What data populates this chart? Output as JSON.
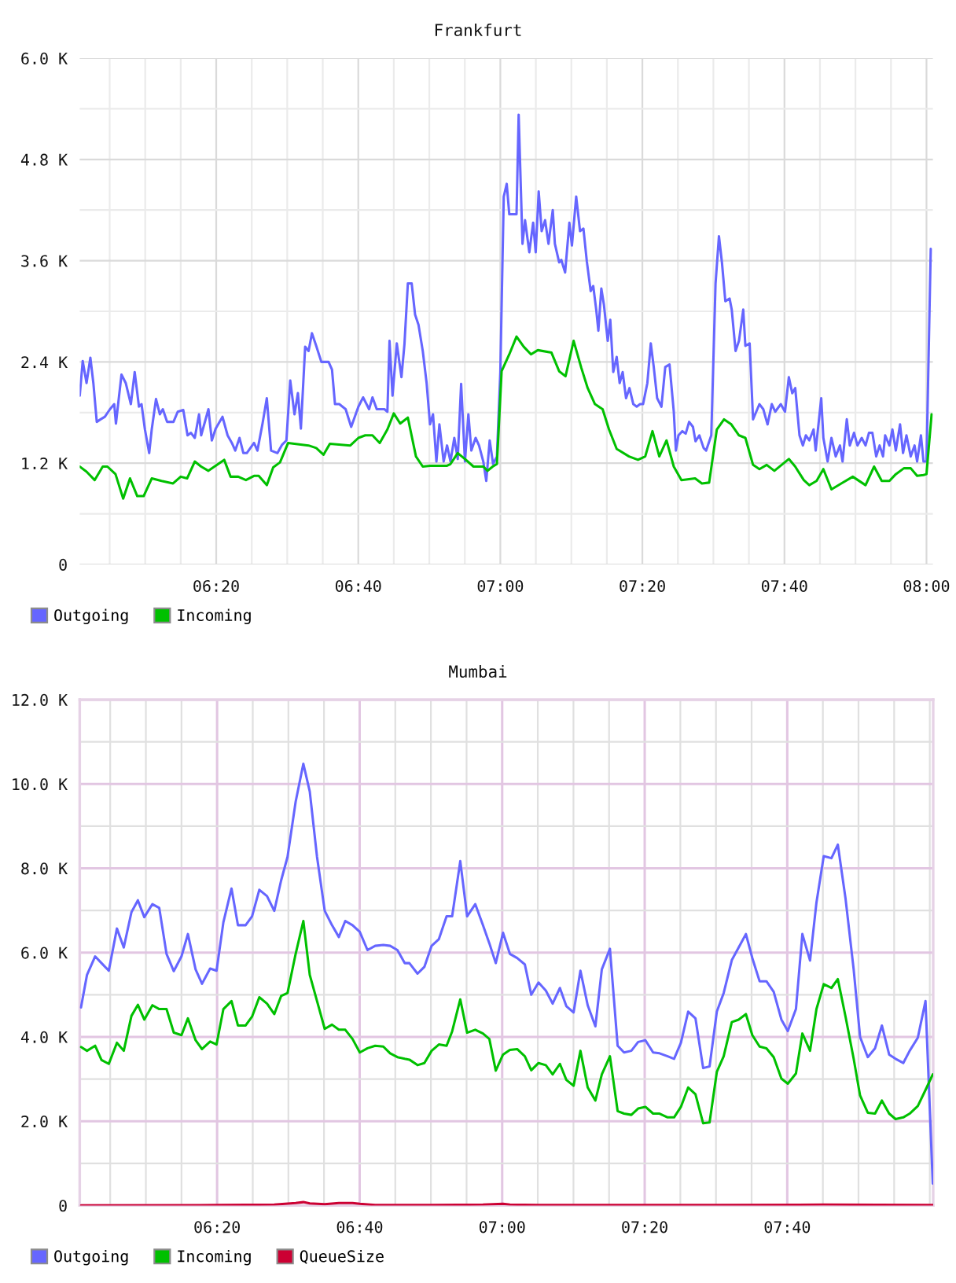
{
  "chart_data": [
    {
      "type": "line",
      "title": "Frankfurt",
      "xlim": [
        6.013,
        8.015
      ],
      "xticks": [
        {
          "value": 6.0833,
          "label": null
        },
        {
          "value": 6.1667,
          "label": null
        },
        {
          "value": 6.25,
          "label": null
        },
        {
          "value": 6.3333,
          "label": "06:20"
        },
        {
          "value": 6.4167,
          "label": null
        },
        {
          "value": 6.5,
          "label": null
        },
        {
          "value": 6.5833,
          "label": null
        },
        {
          "value": 6.6667,
          "label": "06:40"
        },
        {
          "value": 6.75,
          "label": null
        },
        {
          "value": 6.8333,
          "label": null
        },
        {
          "value": 6.9167,
          "label": null
        },
        {
          "value": 7.0,
          "label": "07:00"
        },
        {
          "value": 7.0833,
          "label": null
        },
        {
          "value": 7.1667,
          "label": null
        },
        {
          "value": 7.25,
          "label": null
        },
        {
          "value": 7.3333,
          "label": "07:20"
        },
        {
          "value": 7.4167,
          "label": null
        },
        {
          "value": 7.5,
          "label": null
        },
        {
          "value": 7.5833,
          "label": null
        },
        {
          "value": 7.6667,
          "label": "07:40"
        },
        {
          "value": 7.75,
          "label": null
        },
        {
          "value": 7.8333,
          "label": null
        },
        {
          "value": 7.9167,
          "label": null
        },
        {
          "value": 8.0,
          "label": "08:00"
        }
      ],
      "ylim": [
        0,
        6000
      ],
      "yticks": [
        0,
        {
          "value": 600,
          "label": null
        },
        {
          "value": 1200,
          "label": "1.2 K"
        },
        {
          "value": 1800,
          "label": null
        },
        {
          "value": 2400,
          "label": "2.4 K"
        },
        {
          "value": 3000,
          "label": null
        },
        {
          "value": 3600,
          "label": "3.6 K"
        },
        {
          "value": 4200,
          "label": null
        },
        {
          "value": 4800,
          "label": "4.8 K"
        },
        {
          "value": 5400,
          "label": null
        },
        {
          "value": 6000,
          "label": "6.0 K"
        }
      ],
      "grid": true,
      "legend": "bottom left",
      "series": [
        {
          "name": "Outgoing",
          "color": "#6666ff",
          "x": [
            6.013,
            6.02,
            6.029,
            6.038,
            6.045,
            6.053,
            6.062,
            6.072,
            6.084,
            6.094,
            6.098,
            6.111,
            6.121,
            6.133,
            6.142,
            6.152,
            6.158,
            6.166,
            6.176,
            6.182,
            6.192,
            6.201,
            6.208,
            6.218,
            6.233,
            6.243,
            6.256,
            6.266,
            6.274,
            6.283,
            6.293,
            6.298,
            6.315,
            6.323,
            6.332,
            6.348,
            6.36,
            6.37,
            6.378,
            6.388,
            6.397,
            6.405,
            6.422,
            6.43,
            6.442,
            6.452,
            6.462,
            6.477,
            6.488,
            6.498,
            6.507,
            6.517,
            6.525,
            6.532,
            6.542,
            6.55,
            6.558,
            6.568,
            6.58,
            6.597,
            6.605,
            6.612,
            6.622,
            6.637,
            6.65,
            6.667,
            6.678,
            6.692,
            6.7,
            6.71,
            6.728,
            6.735,
            6.74,
            6.747,
            6.757,
            6.768,
            6.775,
            6.783,
            6.792,
            6.8,
            6.808,
            6.818,
            6.827,
            6.835,
            6.842,
            6.85,
            6.857,
            6.867,
            6.875,
            6.883,
            6.892,
            6.9,
            6.908,
            6.917,
            6.925,
            6.932,
            6.942,
            6.95,
            6.96,
            6.967,
            6.975,
            6.983,
            6.992,
            7.0,
            7.008,
            7.015,
            7.021,
            7.038,
            7.043,
            7.052,
            7.058,
            7.068,
            7.077,
            7.083,
            7.09,
            7.097,
            7.105,
            7.113,
            7.123,
            7.128,
            7.138,
            7.143,
            7.152,
            7.162,
            7.168,
            7.178,
            7.187,
            7.195,
            7.203,
            7.212,
            7.218,
            7.225,
            7.23,
            7.237,
            7.243,
            7.252,
            7.258,
            7.265,
            7.273,
            7.28,
            7.287,
            7.295,
            7.303,
            7.312,
            7.32,
            7.328,
            7.335,
            7.345,
            7.353,
            7.36,
            7.368,
            7.378,
            7.387,
            7.397,
            7.407,
            7.412,
            7.418,
            7.427,
            7.435,
            7.443,
            7.452,
            7.458,
            7.467,
            7.477,
            7.483,
            7.495,
            7.505,
            7.513,
            7.52,
            7.528,
            7.538,
            7.543,
            7.552,
            7.56,
            7.57,
            7.575,
            7.585,
            7.593,
            7.603,
            7.608,
            7.617,
            7.627,
            7.637,
            7.645,
            7.658,
            7.668,
            7.677,
            7.685,
            7.692,
            7.702,
            7.71,
            7.717,
            7.725,
            7.735,
            7.74,
            7.753,
            7.758,
            7.768,
            7.777,
            7.787,
            7.797,
            7.803,
            7.813,
            7.82,
            7.83,
            7.838,
            7.848,
            7.857,
            7.865,
            7.873,
            7.882,
            7.89,
            7.898,
            7.903,
            7.913,
            7.92,
            7.928,
            7.938,
            7.945,
            7.953,
            7.963,
            7.972,
            7.978,
            7.987,
            7.993,
            8.0,
            8.01
          ],
          "values": [
            2000,
            2410,
            2150,
            2450,
            2150,
            1690,
            1720,
            1750,
            1840,
            1900,
            1670,
            2250,
            2150,
            1900,
            2280,
            1870,
            1900,
            1600,
            1320,
            1600,
            1960,
            1780,
            1840,
            1690,
            1690,
            1810,
            1830,
            1530,
            1560,
            1500,
            1780,
            1530,
            1840,
            1470,
            1610,
            1750,
            1530,
            1440,
            1350,
            1500,
            1320,
            1320,
            1440,
            1350,
            1670,
            1970,
            1350,
            1320,
            1420,
            1470,
            2180,
            1780,
            2030,
            1610,
            2580,
            2530,
            2740,
            2590,
            2400,
            2400,
            2310,
            1900,
            1900,
            1840,
            1630,
            1870,
            1980,
            1840,
            1980,
            1840,
            1840,
            1810,
            2650,
            2000,
            2620,
            2220,
            2610,
            3330,
            3330,
            2960,
            2840,
            2530,
            2150,
            1660,
            1780,
            1220,
            1660,
            1220,
            1410,
            1220,
            1500,
            1250,
            2140,
            1220,
            1780,
            1350,
            1500,
            1410,
            1220,
            990,
            1470,
            1190,
            1280,
            2280,
            4360,
            4510,
            4150,
            4150,
            5330,
            3800,
            4080,
            3700,
            4050,
            3700,
            4420,
            3950,
            4080,
            3800,
            4200,
            3800,
            3580,
            3610,
            3460,
            4050,
            3780,
            4360,
            3950,
            3980,
            3590,
            3240,
            3300,
            3020,
            2770,
            3270,
            3080,
            2650,
            2900,
            2280,
            2460,
            2150,
            2280,
            1970,
            2090,
            1900,
            1870,
            1900,
            1900,
            2150,
            2620,
            2340,
            1970,
            1870,
            2340,
            2370,
            1810,
            1350,
            1530,
            1580,
            1550,
            1690,
            1630,
            1460,
            1530,
            1380,
            1350,
            1530,
            3330,
            3890,
            3580,
            3120,
            3150,
            3020,
            2530,
            2650,
            3020,
            2590,
            2620,
            1720,
            1840,
            1900,
            1840,
            1660,
            1900,
            1810,
            1900,
            1810,
            2220,
            2030,
            2090,
            1530,
            1410,
            1530,
            1470,
            1600,
            1350,
            1970,
            1500,
            1220,
            1500,
            1280,
            1410,
            1220,
            1720,
            1410,
            1560,
            1410,
            1500,
            1410,
            1560,
            1560,
            1280,
            1410,
            1280,
            1530,
            1410,
            1600,
            1350,
            1660,
            1320,
            1530,
            1280,
            1410,
            1220,
            1530,
            1220,
            1220,
            3740
          ]
        },
        {
          "name": "Incoming",
          "color": "#00c000",
          "x": [
            6.013,
            6.029,
            6.048,
            6.067,
            6.078,
            6.097,
            6.115,
            6.131,
            6.148,
            6.163,
            6.182,
            6.205,
            6.232,
            6.25,
            6.265,
            6.283,
            6.298,
            6.315,
            6.352,
            6.367,
            6.385,
            6.403,
            6.422,
            6.433,
            6.452,
            6.467,
            6.483,
            6.502,
            6.55,
            6.568,
            6.585,
            6.6,
            6.648,
            6.667,
            6.683,
            6.7,
            6.717,
            6.735,
            6.75,
            6.765,
            6.783,
            6.802,
            6.818,
            6.835,
            6.875,
            6.883,
            6.9,
            6.917,
            6.937,
            6.96,
            6.97,
            6.982,
            6.992,
            7.003,
            7.021,
            7.038,
            7.055,
            7.072,
            7.088,
            7.12,
            7.138,
            7.153,
            7.172,
            7.19,
            7.205,
            7.222,
            7.24,
            7.255,
            7.273,
            7.302,
            7.323,
            7.34,
            7.357,
            7.373,
            7.39,
            7.407,
            7.425,
            7.457,
            7.473,
            7.49,
            7.508,
            7.525,
            7.542,
            7.56,
            7.575,
            7.593,
            7.608,
            7.625,
            7.643,
            7.677,
            7.692,
            7.712,
            7.725,
            7.742,
            7.758,
            7.777,
            7.8,
            7.827,
            7.857,
            7.877,
            7.895,
            7.913,
            7.928,
            7.947,
            7.963,
            7.978,
            7.993,
            8.0,
            8.012
          ],
          "values": [
            1160,
            1100,
            1000,
            1160,
            1160,
            1070,
            780,
            1020,
            810,
            810,
            1020,
            990,
            960,
            1040,
            1020,
            1220,
            1160,
            1110,
            1240,
            1040,
            1040,
            1000,
            1050,
            1050,
            940,
            1150,
            1210,
            1440,
            1410,
            1380,
            1300,
            1430,
            1410,
            1500,
            1530,
            1530,
            1440,
            1600,
            1790,
            1670,
            1740,
            1280,
            1160,
            1170,
            1170,
            1190,
            1320,
            1250,
            1160,
            1160,
            1110,
            1160,
            1190,
            2290,
            2490,
            2700,
            2580,
            2490,
            2540,
            2510,
            2290,
            2230,
            2650,
            2330,
            2090,
            1900,
            1840,
            1600,
            1370,
            1280,
            1240,
            1280,
            1580,
            1280,
            1470,
            1160,
            1000,
            1020,
            960,
            970,
            1600,
            1720,
            1660,
            1530,
            1500,
            1180,
            1130,
            1180,
            1110,
            1250,
            1160,
            1000,
            940,
            990,
            1130,
            890,
            960,
            1040,
            940,
            1160,
            990,
            990,
            1070,
            1140,
            1140,
            1050,
            1060,
            1070,
            1780
          ]
        }
      ]
    },
    {
      "type": "line",
      "title": "Mumbai",
      "xlim": [
        6.012,
        8.008
      ],
      "xticks": [
        {
          "value": 6.0833,
          "label": null
        },
        {
          "value": 6.1667,
          "label": null
        },
        {
          "value": 6.25,
          "label": null
        },
        {
          "value": 6.3333,
          "label": "06:20"
        },
        {
          "value": 6.4167,
          "label": null
        },
        {
          "value": 6.5,
          "label": null
        },
        {
          "value": 6.5833,
          "label": null
        },
        {
          "value": 6.6667,
          "label": "06:40"
        },
        {
          "value": 6.75,
          "label": null
        },
        {
          "value": 6.8333,
          "label": null
        },
        {
          "value": 6.9167,
          "label": null
        },
        {
          "value": 7.0,
          "label": "07:00"
        },
        {
          "value": 7.0833,
          "label": null
        },
        {
          "value": 7.1667,
          "label": null
        },
        {
          "value": 7.25,
          "label": null
        },
        {
          "value": 7.3333,
          "label": "07:20"
        },
        {
          "value": 7.4167,
          "label": null
        },
        {
          "value": 7.5,
          "label": null
        },
        {
          "value": 7.5833,
          "label": null
        },
        {
          "value": 7.6667,
          "label": "07:40"
        },
        {
          "value": 7.75,
          "label": null
        },
        {
          "value": 7.8333,
          "label": null
        },
        {
          "value": 7.9167,
          "label": null
        },
        {
          "value": 8.0,
          "label": null
        }
      ],
      "ylim": [
        0,
        12000
      ],
      "yticks": [
        0,
        {
          "value": 1000,
          "label": null
        },
        {
          "value": 2000,
          "label": "2.0 K"
        },
        {
          "value": 3000,
          "label": null
        },
        {
          "value": 4000,
          "label": "4.0 K"
        },
        {
          "value": 5000,
          "label": null
        },
        {
          "value": 6000,
          "label": "6.0 K"
        },
        {
          "value": 7000,
          "label": null
        },
        {
          "value": 8000,
          "label": "8.0 K"
        },
        {
          "value": 9000,
          "label": null
        },
        {
          "value": 10000,
          "label": "10.0 K"
        },
        {
          "value": 11000,
          "label": null
        },
        {
          "value": 12000,
          "label": "12.0 K"
        }
      ],
      "grid": true,
      "legend": "bottom left",
      "x": [
        6.015,
        6.029,
        6.048,
        6.063,
        6.08,
        6.099,
        6.115,
        6.133,
        6.148,
        6.163,
        6.182,
        6.198,
        6.215,
        6.232,
        6.25,
        6.265,
        6.283,
        6.298,
        6.317,
        6.332,
        6.348,
        6.367,
        6.382,
        6.4,
        6.415,
        6.432,
        6.45,
        6.467,
        6.483,
        6.498,
        6.517,
        6.535,
        6.55,
        6.567,
        6.585,
        6.602,
        6.618,
        6.633,
        6.65,
        6.667,
        6.685,
        6.703,
        6.722,
        6.738,
        6.755,
        6.772,
        6.783,
        6.802,
        6.818,
        6.835,
        6.852,
        6.87,
        6.883,
        6.902,
        6.918,
        6.937,
        6.955,
        6.97,
        6.985,
        7.002,
        7.018,
        7.035,
        7.053,
        7.068,
        7.085,
        7.102,
        7.118,
        7.135,
        7.15,
        7.167,
        7.183,
        7.2,
        7.218,
        7.233,
        7.252,
        7.27,
        7.285,
        7.302,
        7.318,
        7.335,
        7.353,
        7.368,
        7.387,
        7.402,
        7.418,
        7.435,
        7.452,
        7.47,
        7.485,
        7.502,
        7.518,
        7.537,
        7.553,
        7.57,
        7.585,
        7.602,
        7.618,
        7.635,
        7.653,
        7.668,
        7.687,
        7.702,
        7.72,
        7.735,
        7.752,
        7.77,
        7.785,
        7.803,
        7.822,
        7.837,
        7.855,
        7.872,
        7.888,
        7.905,
        7.92,
        7.938,
        7.953,
        7.972,
        7.99,
        8.007
      ],
      "series": [
        {
          "name": "Outgoing",
          "color": "#6666ff",
          "values": [
            4700,
            5470,
            5910,
            5750,
            5570,
            6570,
            6120,
            6960,
            7240,
            6840,
            7150,
            7060,
            5970,
            5560,
            5910,
            6440,
            5600,
            5260,
            5620,
            5570,
            6720,
            7520,
            6650,
            6650,
            6860,
            7490,
            7340,
            6990,
            7710,
            8270,
            9580,
            10480,
            9820,
            8270,
            6990,
            6650,
            6370,
            6750,
            6650,
            6490,
            6060,
            6160,
            6180,
            6160,
            6060,
            5750,
            5750,
            5500,
            5660,
            6160,
            6320,
            6860,
            6860,
            8170,
            6860,
            7150,
            6650,
            6220,
            5750,
            6470,
            5970,
            5870,
            5720,
            5000,
            5290,
            5100,
            4790,
            5160,
            4730,
            4580,
            5570,
            4750,
            4250,
            5600,
            6090,
            3790,
            3630,
            3670,
            3880,
            3920,
            3630,
            3610,
            3540,
            3480,
            3860,
            4600,
            4440,
            3260,
            3300,
            4600,
            5040,
            5820,
            6120,
            6440,
            5870,
            5320,
            5320,
            5070,
            4410,
            4140,
            4660,
            6440,
            5810,
            7190,
            8290,
            8240,
            8560,
            7280,
            5600,
            4000,
            3520,
            3730,
            4270,
            3580,
            3480,
            3380,
            3670,
            3980,
            4850,
            520
          ]
        },
        {
          "name": "Incoming",
          "color": "#00c000",
          "values": [
            3760,
            3670,
            3790,
            3450,
            3360,
            3860,
            3670,
            4500,
            4760,
            4410,
            4750,
            4660,
            4660,
            4100,
            4040,
            4440,
            3920,
            3710,
            3890,
            3820,
            4660,
            4850,
            4270,
            4270,
            4480,
            4940,
            4790,
            4540,
            4970,
            5040,
            5970,
            6750,
            5470,
            4850,
            4190,
            4290,
            4170,
            4170,
            3950,
            3630,
            3730,
            3790,
            3770,
            3610,
            3520,
            3480,
            3460,
            3330,
            3380,
            3670,
            3820,
            3790,
            4130,
            4890,
            4100,
            4170,
            4080,
            3950,
            3200,
            3580,
            3690,
            3710,
            3540,
            3210,
            3380,
            3330,
            3110,
            3360,
            2980,
            2840,
            3670,
            2800,
            2490,
            3110,
            3540,
            2240,
            2180,
            2150,
            2300,
            2340,
            2180,
            2180,
            2090,
            2090,
            2340,
            2800,
            2640,
            1950,
            1970,
            3170,
            3540,
            4350,
            4410,
            4540,
            4040,
            3770,
            3730,
            3520,
            3010,
            2890,
            3130,
            4080,
            3670,
            4660,
            5250,
            5160,
            5370,
            4480,
            3480,
            2610,
            2200,
            2180,
            2490,
            2180,
            2050,
            2090,
            2180,
            2360,
            2740,
            3110
          ]
        },
        {
          "name": "QueueSize",
          "color": "#cc0033",
          "x": [
            6.015,
            6.333,
            6.467,
            6.517,
            6.535,
            6.55,
            6.585,
            6.618,
            6.65,
            6.667,
            6.703,
            6.835,
            6.955,
            7.002,
            7.018,
            7.085,
            7.502,
            7.752,
            8.007
          ],
          "values": [
            0,
            10,
            20,
            60,
            80,
            50,
            30,
            60,
            60,
            40,
            10,
            10,
            20,
            40,
            20,
            10,
            10,
            20,
            10
          ]
        }
      ]
    }
  ]
}
